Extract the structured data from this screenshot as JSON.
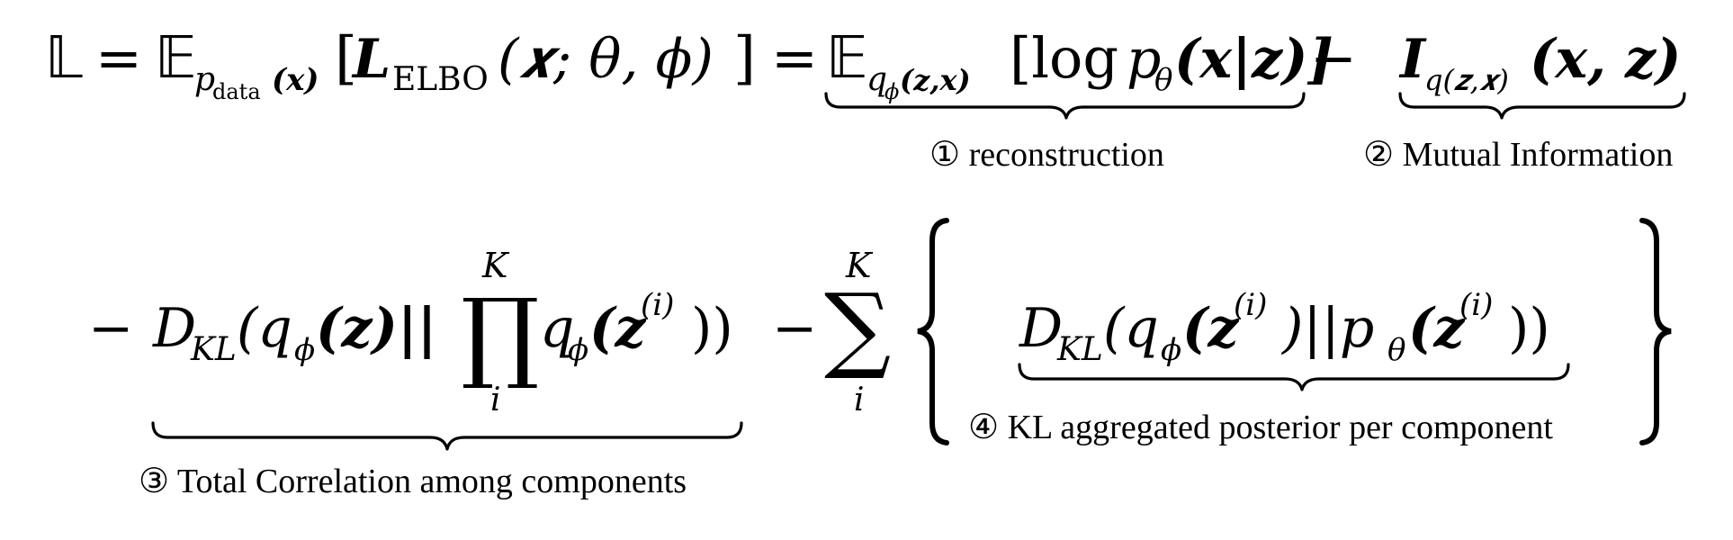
{
  "equation": {
    "line1": {
      "lhs": "𝕃",
      "eq1": "=",
      "expect1": "𝔼",
      "expect1_sub_p": "p",
      "expect1_sub_data": "data",
      "expect1_sub_arg": "(𝒙)",
      "elbo_open": "[",
      "elbo_L": "𝑳",
      "elbo_sub": "ELBO",
      "elbo_args": "(𝒙; θ, ϕ)",
      "elbo_close": "]",
      "eq2": "=",
      "expect2": "𝔼",
      "expect2_sub": "q",
      "expect2_sub_phi": "ϕ",
      "expect2_sub_args": "(𝒛,𝒙)",
      "recon_open": "[log",
      "recon_p": "p",
      "recon_theta": "θ",
      "recon_args": "(𝒙|𝒛)]",
      "minus": "−",
      "mi_I": "𝑰",
      "mi_sub": "q(𝒛,𝒙)",
      "mi_args": "(𝒙, 𝒛)"
    },
    "line2": {
      "lead_minus": "−",
      "dkl_D": "D",
      "dkl_sub": "KL",
      "tc_args_a": "(q",
      "tc_phi": "ϕ",
      "tc_args_b": "(𝒛)||",
      "prod": "∏",
      "prod_top": "K",
      "prod_bottom": "i",
      "tc_q": "q",
      "tc_phi2": "ϕ",
      "tc_args_c": "(𝒛",
      "tc_sup": "(i)",
      "tc_args_d": "))",
      "mid_minus": "−",
      "sum": "∑",
      "sum_top": "K",
      "sum_bottom": "i",
      "dkl2_D": "D",
      "dkl2_sub": "KL",
      "dkl2_args_a": "(q",
      "dkl2_phi": "ϕ",
      "dkl2_args_b": "(𝒛",
      "dkl2_sup1": "(i)",
      "dkl2_args_c": ")||p",
      "dkl2_theta": "θ",
      "dkl2_args_d": "(𝒛",
      "dkl2_sup2": "(i)",
      "dkl2_args_e": "))"
    },
    "captions": {
      "c1": "① reconstruction",
      "c2": "② Mutual Information",
      "c3": "③ Total Correlation among components",
      "c4": "④ KL aggregated posterior per component"
    }
  }
}
